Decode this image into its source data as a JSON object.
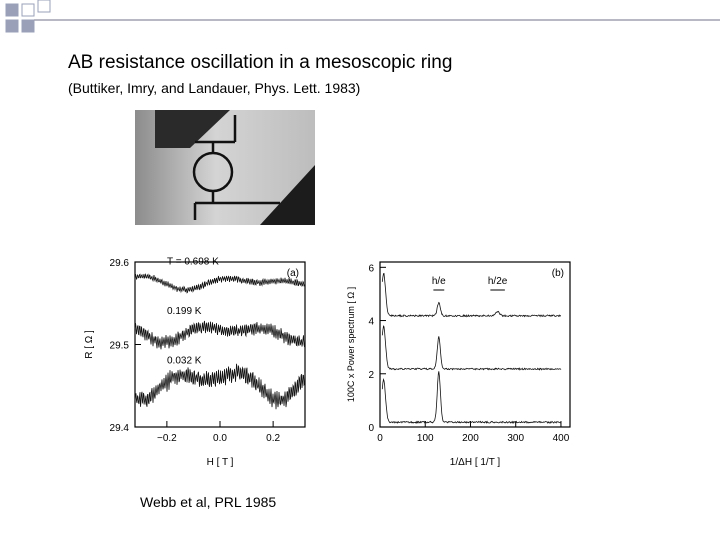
{
  "slide": {
    "title": "AB resistance oscillation in a mesoscopic ring",
    "subtitle": "(Buttiker, Imry, and Landauer, Phys. Lett. 1983)",
    "credit": "Webb et al, PRL 1985"
  },
  "colors": {
    "accent_squares": "#9aa0b8",
    "decor_line": "#a0a0b0"
  },
  "chart_data": [
    {
      "type": "line",
      "panel_label": "(a)",
      "xlabel": "H  [ T ]",
      "ylabel": "R  [ Ω ]",
      "xlim": [
        -0.32,
        0.32
      ],
      "ylim": [
        29.4,
        29.6
      ],
      "xticks": [
        "-0.2",
        "0.0",
        "0.2"
      ],
      "yticks": [
        "29.4",
        "29.5",
        "29.6"
      ],
      "series": [
        {
          "name": "T = 0.698 K",
          "baseline": 29.575,
          "amplitude": 0.008,
          "noise": 0.003
        },
        {
          "name": "0.199 K",
          "baseline": 29.515,
          "amplitude": 0.012,
          "noise": 0.006
        },
        {
          "name": "0.032 K",
          "baseline": 29.455,
          "amplitude": 0.022,
          "noise": 0.008
        }
      ]
    },
    {
      "type": "line",
      "panel_label": "(b)",
      "xlabel": "1/ΔH  [ 1/T ]",
      "ylabel": "100C x Power spectrum  [ Ω ]",
      "xlim": [
        0,
        420
      ],
      "ylim": [
        0,
        6.2
      ],
      "xticks": [
        "0",
        "100",
        "200",
        "300",
        "400"
      ],
      "yticks": [
        "0",
        "2",
        "4",
        "6"
      ],
      "annotations": [
        "h/e",
        "h/2e"
      ],
      "peak_h_over_e": 130,
      "series": [
        {
          "offset": 4,
          "peak": 0.5
        },
        {
          "offset": 2,
          "peak": 1.2
        },
        {
          "offset": 0,
          "peak": 1.9
        }
      ]
    }
  ]
}
